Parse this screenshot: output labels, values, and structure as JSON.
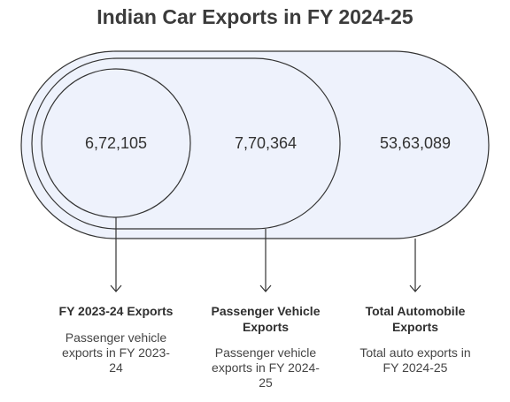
{
  "title": "Indian Car Exports in FY 2024-25",
  "items": [
    {
      "value": "6,72,105",
      "label": "FY 2023-24 Exports",
      "description": "Passenger vehicle exports in FY 2023-24"
    },
    {
      "value": "7,70,364",
      "label": "Passenger Vehicle Exports",
      "description": "Passenger vehicle exports in FY 2024-25"
    },
    {
      "value": "53,63,089",
      "label": "Total Automobile Exports",
      "description": "Total auto exports in FY 2024-25"
    }
  ]
}
